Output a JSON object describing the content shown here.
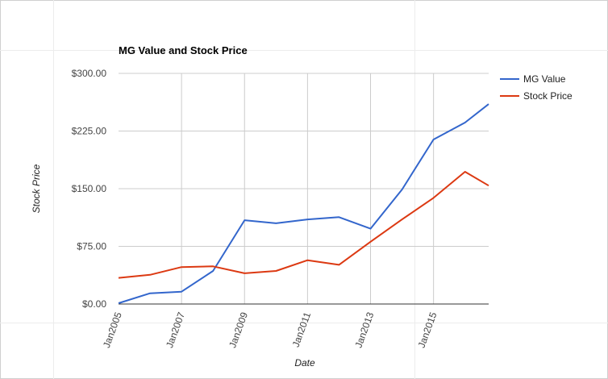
{
  "chart_data": {
    "type": "line",
    "title": "MG Value and Stock Price",
    "xlabel": "Date",
    "ylabel": "Stock Price",
    "x_ticks": [
      "Jan2005",
      "Jan2007",
      "Jan2009",
      "Jan2011",
      "Jan2013",
      "Jan2015"
    ],
    "y_ticks": [
      "$0.00",
      "$75.00",
      "$150.00",
      "$225.00",
      "$300.00"
    ],
    "ylim": [
      0,
      300
    ],
    "xlim": [
      "2005-01",
      "2016-10"
    ],
    "x": [
      "2005-01",
      "2006-01",
      "2007-01",
      "2008-01",
      "2009-01",
      "2010-01",
      "2011-01",
      "2012-01",
      "2013-01",
      "2014-01",
      "2015-01",
      "2016-01",
      "2016-10"
    ],
    "series": [
      {
        "name": "MG Value",
        "color": "#3366cc",
        "values": [
          1,
          14,
          16,
          43,
          109,
          105,
          110,
          113,
          98,
          149,
          214,
          236,
          260
        ]
      },
      {
        "name": "Stock Price",
        "color": "#dc3912",
        "values": [
          34,
          38,
          48,
          49,
          40,
          43,
          57,
          51,
          81,
          110,
          138,
          172,
          154
        ]
      }
    ],
    "grid": true,
    "legend": "right"
  }
}
